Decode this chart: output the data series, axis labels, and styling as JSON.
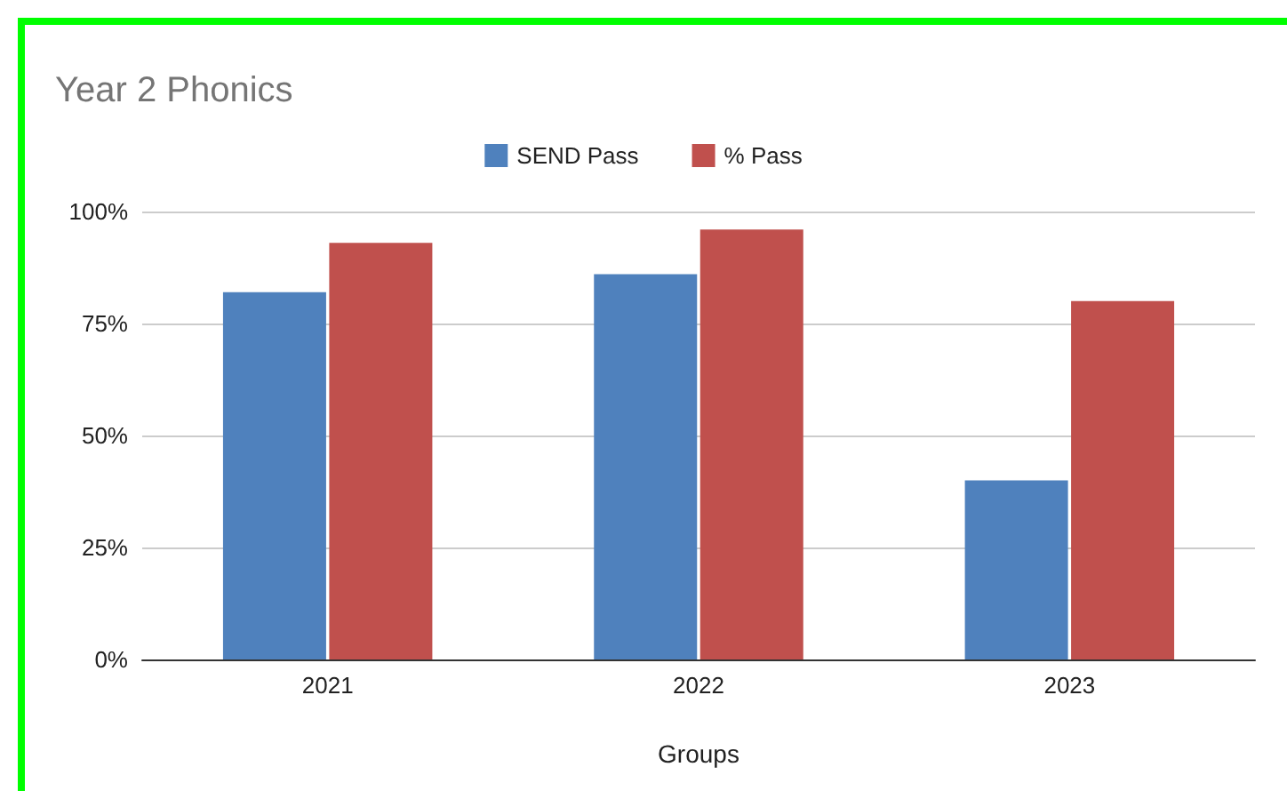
{
  "chart_data": {
    "type": "bar",
    "title": "Year 2 Phonics",
    "xlabel": "Groups",
    "categories": [
      "2021",
      "2022",
      "2023"
    ],
    "series": [
      {
        "name": "SEND Pass",
        "color": "#4f81bd",
        "values": [
          82,
          86,
          40
        ]
      },
      {
        "name": "% Pass",
        "color": "#c0504d",
        "values": [
          93,
          96,
          80
        ]
      }
    ],
    "ylim": [
      0,
      100
    ],
    "yticks": [
      {
        "value": 0,
        "label": "0%"
      },
      {
        "value": 25,
        "label": "25%"
      },
      {
        "value": 50,
        "label": "50%"
      },
      {
        "value": 75,
        "label": "75%"
      },
      {
        "value": 100,
        "label": "100%"
      }
    ],
    "grid": "y",
    "legend": "top"
  }
}
